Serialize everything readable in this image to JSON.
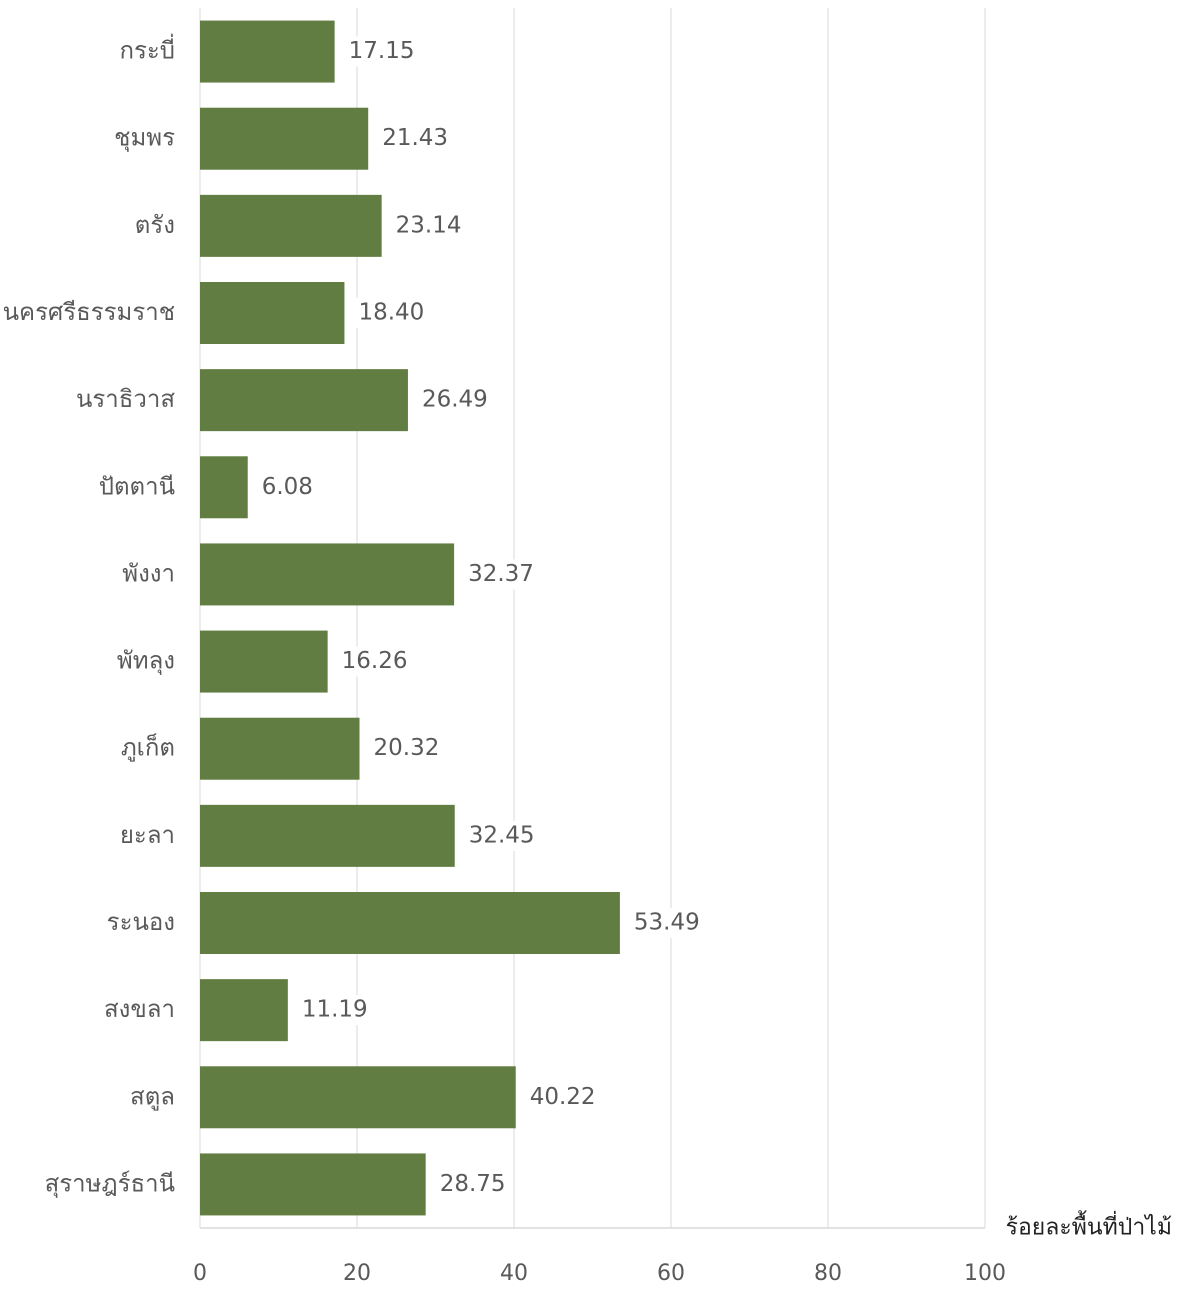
{
  "chart_data": {
    "type": "bar",
    "orientation": "horizontal",
    "categories": [
      "กระบี่",
      "ชุมพร",
      "ตรัง",
      "นครศรีธรรมราช",
      "นราธิวาส",
      "ปัตตานี",
      "พังงา",
      "พัทลุง",
      "ภูเก็ต",
      "ยะลา",
      "ระนอง",
      "สงขลา",
      "สตูล",
      "สุราษฎร์ธานี"
    ],
    "values": [
      17.15,
      21.43,
      23.14,
      18.4,
      26.49,
      6.08,
      32.37,
      16.26,
      20.32,
      32.45,
      53.49,
      11.19,
      40.22,
      28.75
    ],
    "value_labels": [
      "17.15",
      "21.43",
      "23.14",
      "18.40",
      "26.49",
      "6.08",
      "32.37",
      "16.26",
      "20.32",
      "32.45",
      "53.49",
      "11.19",
      "40.22",
      "28.75"
    ],
    "x_ticks": [
      "0",
      "20",
      "40",
      "60",
      "80",
      "100"
    ],
    "xlim": [
      0,
      100
    ],
    "xlabel": "ร้อยละพื้นที่ป่าไม้",
    "ylabel": "",
    "title": "",
    "grid": true,
    "bar_color": "#627d41",
    "grid_color": "#d9d9d9",
    "text_color": "#595959"
  }
}
